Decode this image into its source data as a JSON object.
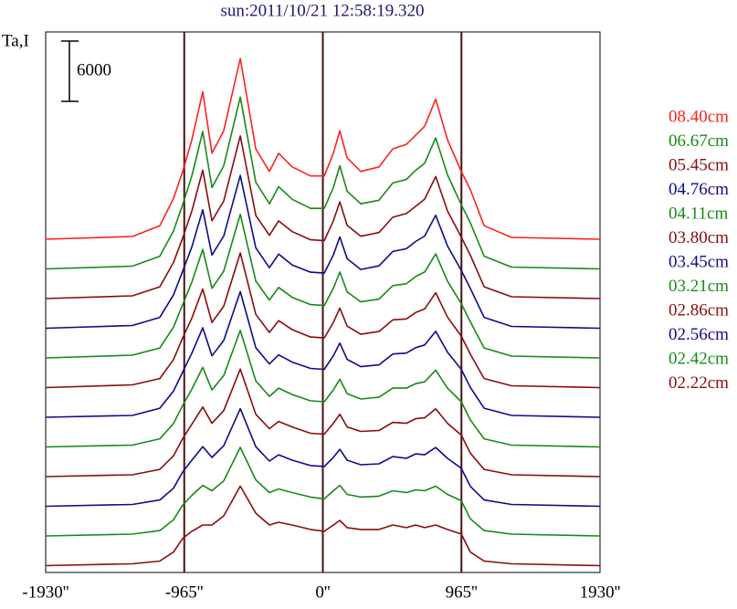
{
  "chart_data": {
    "type": "line",
    "title": "sun:2011/10/21 12:58:19.320",
    "y_label": "Ta,I",
    "scale_bar": 6000,
    "xlim": [
      -1930,
      1930
    ],
    "xticks": [
      {
        "value": -1930,
        "label": "-1930''"
      },
      {
        "value": -965,
        "label": "-965''"
      },
      {
        "value": 0,
        "label": "0''"
      },
      {
        "value": 965,
        "label": "965''"
      },
      {
        "value": 1930,
        "label": "1930''"
      }
    ],
    "grid": true,
    "x": [
      -1930,
      -1326,
      -1135,
      -1040,
      -976,
      -912,
      -836,
      -772,
      -690,
      -575,
      -467,
      -372,
      -308,
      -213,
      -86,
      10,
      73,
      118,
      169,
      264,
      391,
      487,
      582,
      646,
      709,
      786,
      868,
      964,
      1027,
      1123,
      1314,
      1930
    ],
    "series": [
      {
        "name": "08.40cm",
        "color": "#ff2020",
        "values": [
          0,
          270,
          1350,
          4050,
          6750,
          9900,
          14670,
          8550,
          10800,
          18000,
          9000,
          6750,
          8550,
          7200,
          6300,
          6300,
          8550,
          10800,
          8100,
          6750,
          7200,
          9000,
          9450,
          10350,
          11250,
          13950,
          9900,
          6750,
          4950,
          1350,
          180,
          0
        ]
      },
      {
        "name": "06.67cm",
        "color": "#178a17",
        "values": [
          0,
          270,
          1260,
          3780,
          6390,
          9270,
          13680,
          8100,
          10260,
          17100,
          8640,
          6480,
          8190,
          6930,
          6030,
          6030,
          8100,
          10260,
          7740,
          6480,
          6840,
          8550,
          8910,
          9810,
          10530,
          13050,
          9360,
          6390,
          4590,
          1260,
          180,
          0
        ]
      },
      {
        "name": "05.45cm",
        "color": "#8a0c0c",
        "values": [
          0,
          270,
          1170,
          3600,
          6030,
          8730,
          12780,
          7740,
          9720,
          16200,
          8280,
          6300,
          7740,
          6660,
          5850,
          5760,
          7740,
          9630,
          7290,
          6210,
          6570,
          8100,
          8460,
          9180,
          9900,
          12150,
          8730,
          6120,
          4320,
          1170,
          180,
          0
        ]
      },
      {
        "name": "04.76cm",
        "color": "#0c0c8a",
        "values": [
          0,
          270,
          1080,
          3330,
          5670,
          8100,
          11790,
          7290,
          9180,
          15210,
          8010,
          6030,
          7380,
          6300,
          5580,
          5490,
          7290,
          9090,
          6930,
          5850,
          6210,
          7650,
          7920,
          8640,
          9180,
          11250,
          8190,
          5760,
          3960,
          1080,
          180,
          0
        ]
      },
      {
        "name": "04.11cm",
        "color": "#178a17",
        "values": [
          0,
          270,
          990,
          3060,
          5310,
          7560,
          10800,
          6930,
          8640,
          14310,
          7650,
          5760,
          7020,
          6030,
          5310,
          5220,
          6930,
          8550,
          6570,
          5580,
          5850,
          7200,
          7380,
          8100,
          8550,
          10350,
          7650,
          5400,
          3600,
          990,
          180,
          0
        ]
      },
      {
        "name": "03.80cm",
        "color": "#8a0c0c",
        "values": [
          0,
          270,
          900,
          2790,
          4950,
          6930,
          9810,
          6480,
          8100,
          13410,
          7290,
          5490,
          6660,
          5760,
          5040,
          4950,
          6480,
          7920,
          6120,
          5310,
          5580,
          6750,
          6840,
          7470,
          7830,
          9450,
          7020,
          5130,
          3330,
          900,
          180,
          0
        ]
      },
      {
        "name": "03.45cm",
        "color": "#0c0c8a",
        "values": [
          0,
          180,
          900,
          2610,
          4500,
          6390,
          8910,
          6120,
          7650,
          12510,
          6930,
          5310,
          6210,
          5490,
          4860,
          4770,
          6120,
          7380,
          5760,
          5040,
          5220,
          6300,
          6390,
          6930,
          7200,
          8550,
          6480,
          4770,
          2970,
          900,
          180,
          0
        ]
      },
      {
        "name": "03.21cm",
        "color": "#178a17",
        "values": [
          0,
          180,
          810,
          2340,
          4140,
          5760,
          7920,
          5670,
          7110,
          11610,
          6570,
          5040,
          5850,
          5220,
          4590,
          4500,
          5670,
          6750,
          5310,
          4770,
          4950,
          5850,
          5850,
          6300,
          6480,
          7650,
          5850,
          4500,
          2700,
          810,
          180,
          0
        ]
      },
      {
        "name": "02.86cm",
        "color": "#8a0c0c",
        "values": [
          0,
          180,
          720,
          2070,
          3780,
          5220,
          6930,
          5310,
          6570,
          10710,
          6210,
          4770,
          5490,
          4950,
          4320,
          4230,
          5310,
          6210,
          4950,
          4500,
          4590,
          5400,
          5310,
          5760,
          5850,
          6750,
          5310,
          4140,
          2340,
          720,
          180,
          0
        ]
      },
      {
        "name": "02.56cm",
        "color": "#0c0c8a",
        "values": [
          0,
          180,
          630,
          1800,
          3420,
          4590,
          5940,
          4860,
          6030,
          9720,
          5940,
          4500,
          5130,
          4590,
          4050,
          3960,
          4860,
          5670,
          4590,
          4140,
          4230,
          4950,
          4770,
          5220,
          5130,
          5850,
          4770,
          3780,
          1980,
          630,
          180,
          0
        ]
      },
      {
        "name": "02.42cm",
        "color": "#178a17",
        "values": [
          0,
          180,
          540,
          1620,
          3060,
          4050,
          5040,
          4500,
          5490,
          8820,
          5580,
          4320,
          4680,
          4320,
          3870,
          3690,
          4500,
          5040,
          4140,
          3870,
          3960,
          4500,
          4320,
          4590,
          4500,
          4950,
          4140,
          3510,
          1710,
          540,
          180,
          0
        ]
      },
      {
        "name": "02.22cm",
        "color": "#8a0c0c",
        "values": [
          0,
          180,
          450,
          1350,
          2700,
          3420,
          4050,
          4050,
          4950,
          7920,
          5220,
          4050,
          4320,
          4050,
          3600,
          3420,
          4050,
          4500,
          3780,
          3600,
          3600,
          4050,
          3780,
          4050,
          3780,
          4050,
          3600,
          3150,
          1350,
          450,
          180,
          0
        ]
      }
    ]
  }
}
